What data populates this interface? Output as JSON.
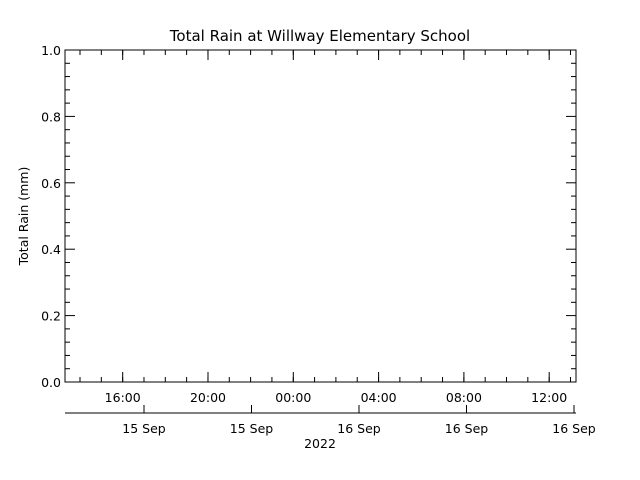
{
  "chart_data": {
    "type": "line",
    "title": "Total Rain at Willway Elementary School",
    "ylabel": "Total Rain (mm)",
    "xlabel": "2022",
    "ylim": [
      0.0,
      1.0
    ],
    "yticks": [
      "0.0",
      "0.2",
      "0.4",
      "0.6",
      "0.8",
      "1.0"
    ],
    "x_hour_ticks": [
      "16:00",
      "20:00",
      "00:00",
      "04:00",
      "08:00",
      "12:00"
    ],
    "x_date_ticks": [
      "15 Sep",
      "15 Sep",
      "16 Sep",
      "16 Sep",
      "16 Sep"
    ],
    "series": [
      {
        "values": []
      }
    ],
    "grid": false,
    "colors": {
      "axis": "#000000",
      "background": "#ffffff"
    }
  }
}
